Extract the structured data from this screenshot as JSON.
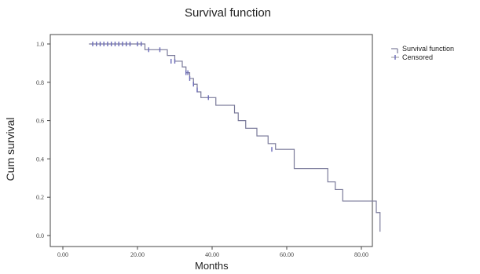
{
  "chart_data": {
    "type": "line",
    "title": "Survival function",
    "xlabel": "Months",
    "ylabel": "Cum survival",
    "xlim": [
      0,
      80
    ],
    "ylim": [
      0,
      1.0
    ],
    "x_ticks": [
      "0.00",
      "20.00",
      "40.00",
      "60.00",
      "80.00"
    ],
    "y_ticks": [
      "0.0",
      "0.2",
      "0.4",
      "0.6",
      "0.8",
      "1.0"
    ],
    "legend": [
      "Survival function",
      "Censored"
    ],
    "legend_position": "right",
    "series": [
      {
        "name": "Survival function",
        "color": "#7a7a9a",
        "steps": [
          [
            7,
            1.0
          ],
          [
            22,
            0.97
          ],
          [
            27,
            0.97
          ],
          [
            28,
            0.94
          ],
          [
            30,
            0.91
          ],
          [
            32,
            0.88
          ],
          [
            33,
            0.85
          ],
          [
            34,
            0.82
          ],
          [
            35,
            0.79
          ],
          [
            36,
            0.75
          ],
          [
            37,
            0.72
          ],
          [
            40,
            0.72
          ],
          [
            41,
            0.68
          ],
          [
            45,
            0.68
          ],
          [
            46,
            0.64
          ],
          [
            47,
            0.6
          ],
          [
            49,
            0.56
          ],
          [
            52,
            0.52
          ],
          [
            55,
            0.48
          ],
          [
            57,
            0.45
          ],
          [
            62,
            0.35
          ],
          [
            70,
            0.35
          ],
          [
            71,
            0.28
          ],
          [
            73,
            0.24
          ],
          [
            75,
            0.18
          ],
          [
            82,
            0.18
          ],
          [
            84,
            0.12
          ],
          [
            85,
            0.02
          ]
        ]
      },
      {
        "name": "Censored",
        "color": "#6a6ab8",
        "points": [
          [
            8,
            1.0
          ],
          [
            9,
            1.0
          ],
          [
            10,
            1.0
          ],
          [
            11,
            1.0
          ],
          [
            12,
            1.0
          ],
          [
            13,
            1.0
          ],
          [
            14,
            1.0
          ],
          [
            15,
            1.0
          ],
          [
            16,
            1.0
          ],
          [
            17,
            1.0
          ],
          [
            18,
            1.0
          ],
          [
            20,
            1.0
          ],
          [
            21,
            1.0
          ],
          [
            23,
            0.97
          ],
          [
            26,
            0.97
          ],
          [
            29,
            0.91
          ],
          [
            30,
            0.91
          ],
          [
            33,
            0.85
          ],
          [
            33.5,
            0.85
          ],
          [
            34,
            0.82
          ],
          [
            35,
            0.79
          ],
          [
            36,
            0.76
          ],
          [
            39,
            0.72
          ],
          [
            56,
            0.45
          ]
        ]
      }
    ]
  }
}
